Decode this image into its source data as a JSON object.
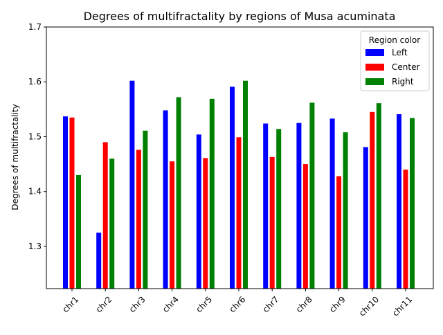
{
  "chart_data": {
    "type": "bar",
    "title": "Degrees of multifractality by regions of Musa acuminata",
    "xlabel": "",
    "ylabel": "Degrees of multifractality",
    "ylim": [
      1.223,
      1.7
    ],
    "yticks": [
      "1.3",
      "1.4",
      "1.5",
      "1.6",
      "1.7"
    ],
    "categories": [
      "chr1",
      "chr2",
      "chr3",
      "chr4",
      "chr5",
      "chr6",
      "chr7",
      "chr8",
      "chr9",
      "chr10",
      "chr11"
    ],
    "legend": {
      "title": "Region color",
      "position": "top-right"
    },
    "grid": false,
    "series": [
      {
        "name": "Left",
        "color": "#0000ff",
        "values": [
          1.537,
          1.325,
          1.602,
          1.548,
          1.504,
          1.591,
          1.524,
          1.525,
          1.533,
          1.481,
          1.541
        ]
      },
      {
        "name": "Center",
        "color": "#ff0000",
        "values": [
          1.535,
          1.49,
          1.476,
          1.455,
          1.461,
          1.499,
          1.463,
          1.45,
          1.428,
          1.545,
          1.44
        ]
      },
      {
        "name": "Right",
        "color": "#008000",
        "values": [
          1.43,
          1.46,
          1.511,
          1.572,
          1.569,
          1.602,
          1.514,
          1.562,
          1.508,
          1.561,
          1.534
        ]
      }
    ]
  }
}
